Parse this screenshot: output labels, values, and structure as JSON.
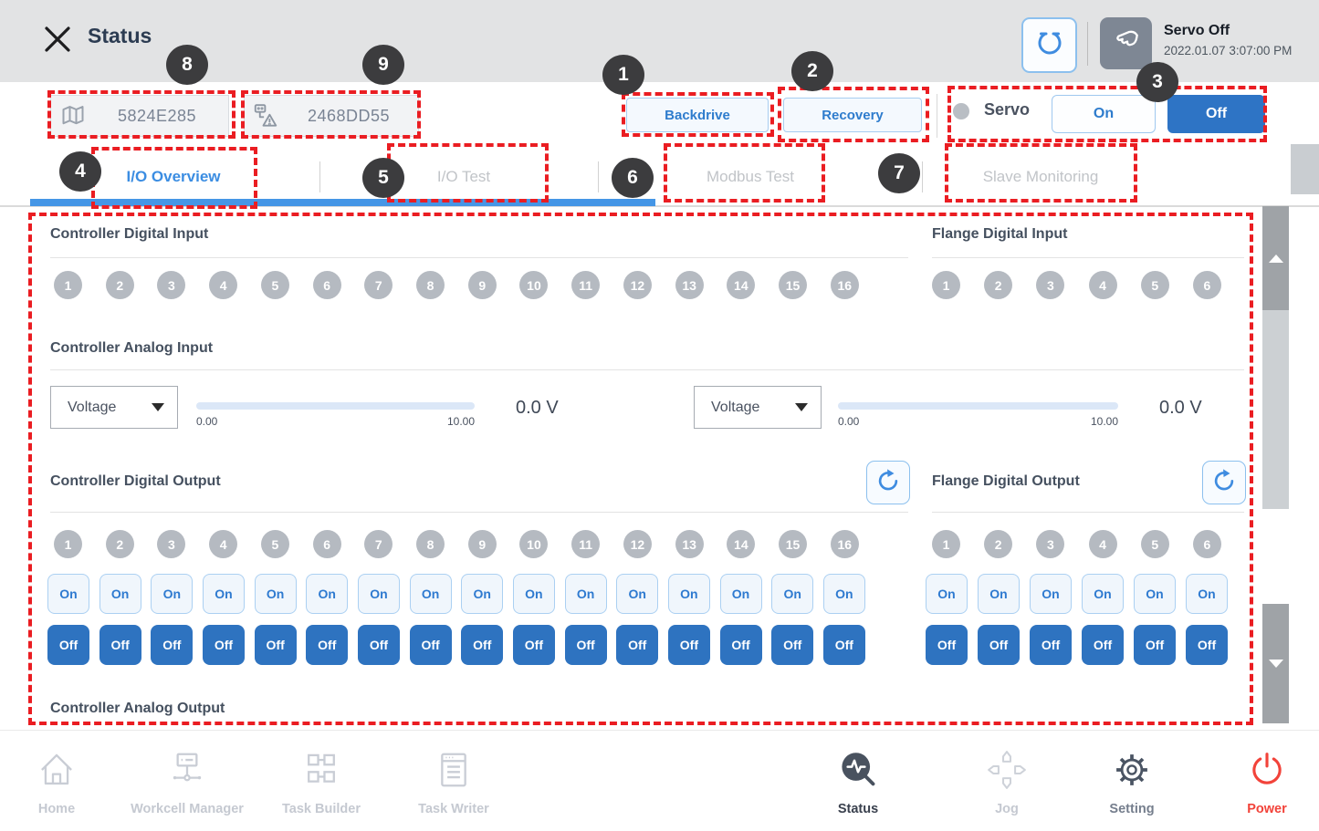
{
  "header": {
    "title": "Status",
    "servo_state": "Servo Off",
    "timestamp": "2022.01.07 3:07:00 PM"
  },
  "toolbar": {
    "program_id": "5824E285",
    "safety_id": "2468DD55",
    "backdrive_label": "Backdrive",
    "recovery_label": "Recovery",
    "servo_label": "Servo",
    "servo_on_label": "On",
    "servo_off_label": "Off"
  },
  "tabs": [
    "I/O Overview",
    "I/O Test",
    "Modbus Test",
    "Slave Monitoring"
  ],
  "callouts": {
    "backdrive": "1",
    "recovery": "2",
    "servo": "3",
    "tab_io_overview": "4",
    "tab_io_test": "5",
    "tab_modbus_test": "6",
    "tab_slave_monitoring": "7",
    "program_id": "8",
    "safety_id": "9"
  },
  "io": {
    "sections": {
      "controller_digital_input": "Controller Digital Input",
      "flange_digital_input": "Flange Digital Input",
      "controller_analog_input": "Controller Analog Input",
      "controller_digital_output": "Controller Digital Output",
      "flange_digital_output": "Flange Digital Output",
      "controller_analog_output": "Controller Analog Output"
    },
    "controller_channels": [
      "1",
      "2",
      "3",
      "4",
      "5",
      "6",
      "7",
      "8",
      "9",
      "10",
      "11",
      "12",
      "13",
      "14",
      "15",
      "16"
    ],
    "flange_channels": [
      "1",
      "2",
      "3",
      "4",
      "5",
      "6"
    ],
    "analog_inputs": [
      {
        "mode": "Voltage",
        "min": "0.00",
        "max": "10.00",
        "value": "0.0 V"
      },
      {
        "mode": "Voltage",
        "min": "0.00",
        "max": "10.00",
        "value": "0.0 V"
      }
    ],
    "output_on_label": "On",
    "output_off_label": "Off"
  },
  "nav": [
    {
      "label": "Home"
    },
    {
      "label": "Workcell Manager"
    },
    {
      "label": "Task Builder"
    },
    {
      "label": "Task Writer"
    },
    {
      "label": "Status"
    },
    {
      "label": "Jog"
    },
    {
      "label": "Setting"
    },
    {
      "label": "Power"
    }
  ],
  "colors": {
    "accent_blue": "#2e74c5",
    "active_tab_blue": "#3b8de2",
    "annotation_red": "#ea1d22",
    "power_red": "#f2433a",
    "channel_gray": "#b5bac1",
    "header_gray": "#e2e3e4"
  }
}
